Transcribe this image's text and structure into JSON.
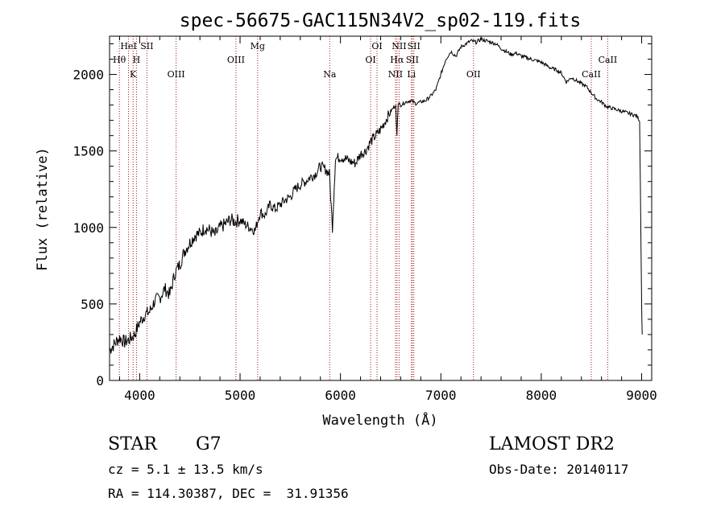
{
  "chart_data": {
    "type": "line",
    "title": "spec-56675-GAC115N34V2_sp02-119.fits",
    "xlabel": "Wavelength (Å)",
    "ylabel": "Flux (relative)",
    "xlim": [
      3700,
      9100
    ],
    "ylim": [
      0,
      2250
    ],
    "xticks": [
      4000,
      5000,
      6000,
      7000,
      8000,
      9000
    ],
    "yticks": [
      0,
      500,
      1000,
      1500,
      2000
    ],
    "grid": false,
    "series": [
      {
        "x": [
          3700,
          3750,
          3800,
          3850,
          3900,
          3950,
          4000,
          4050,
          4100,
          4150,
          4200,
          4250,
          4300,
          4350,
          4400,
          4450,
          4500,
          4550,
          4600,
          4650,
          4700,
          4750,
          4800,
          4850,
          4900,
          4950,
          5000,
          5050,
          5100,
          5150,
          5200,
          5250,
          5300,
          5350,
          5400,
          5450,
          5500,
          5550,
          5600,
          5650,
          5700,
          5750,
          5800,
          5850,
          5890,
          5920,
          5950,
          6000,
          6050,
          6100,
          6150,
          6200,
          6250,
          6300,
          6350,
          6400,
          6450,
          6500,
          6550,
          6562,
          6575,
          6600,
          6650,
          6700,
          6750,
          6800,
          6850,
          6900,
          6950,
          7000,
          7050,
          7100,
          7150,
          7200,
          7250,
          7300,
          7350,
          7400,
          7450,
          7500,
          7550,
          7600,
          7650,
          7700,
          7750,
          7800,
          7850,
          7900,
          7950,
          8000,
          8050,
          8100,
          8150,
          8200,
          8250,
          8300,
          8350,
          8400,
          8450,
          8500,
          8550,
          8600,
          8650,
          8700,
          8750,
          8800,
          8850,
          8900,
          8950,
          8980,
          9000,
          9005
        ],
        "y": [
          200,
          240,
          280,
          250,
          270,
          300,
          380,
          430,
          450,
          520,
          540,
          600,
          560,
          700,
          760,
          850,
          900,
          950,
          960,
          1000,
          980,
          950,
          1000,
          1020,
          1050,
          1040,
          1050,
          1020,
          1000,
          980,
          1100,
          1080,
          1150,
          1120,
          1150,
          1180,
          1200,
          1250,
          1280,
          1300,
          1330,
          1350,
          1400,
          1380,
          1350,
          1000,
          1450,
          1460,
          1450,
          1430,
          1420,
          1480,
          1500,
          1560,
          1600,
          1640,
          1700,
          1760,
          1800,
          1600,
          1810,
          1800,
          1820,
          1830,
          1810,
          1820,
          1830,
          1860,
          1900,
          2000,
          2100,
          2150,
          2120,
          2180,
          2200,
          2220,
          2210,
          2230,
          2220,
          2210,
          2200,
          2170,
          2150,
          2130,
          2140,
          2120,
          2110,
          2100,
          2090,
          2080,
          2060,
          2040,
          2030,
          2010,
          1950,
          1980,
          1960,
          1940,
          1920,
          1880,
          1840,
          1820,
          1790,
          1780,
          1770,
          1760,
          1750,
          1740,
          1730,
          1700,
          500,
          300
        ]
      }
    ],
    "lines": [
      {
        "x": 3798,
        "label": "Hθ",
        "row": 2
      },
      {
        "x": 3889,
        "label": "HeI",
        "row": 1
      },
      {
        "x": 3934,
        "label": "K",
        "row": 3
      },
      {
        "x": 3968,
        "label": "H",
        "row": 2
      },
      {
        "x": 4072,
        "label": "SII",
        "row": 1
      },
      {
        "x": 4363,
        "label": "OIII",
        "row": 3
      },
      {
        "x": 4959,
        "label": "OIII",
        "row": 2
      },
      {
        "x": 5175,
        "label": "Mg",
        "row": 1
      },
      {
        "x": 5893,
        "label": "Na",
        "row": 3
      },
      {
        "x": 6300,
        "label": "OI",
        "row": 2
      },
      {
        "x": 6364,
        "label": "OI",
        "row": 1
      },
      {
        "x": 6548,
        "label": "NII",
        "row": 3
      },
      {
        "x": 6563,
        "label": "Hα",
        "row": 2
      },
      {
        "x": 6584,
        "label": "NII",
        "row": 1
      },
      {
        "x": 6707,
        "label": "Li",
        "row": 3
      },
      {
        "x": 6716,
        "label": "SII",
        "row": 2
      },
      {
        "x": 6731,
        "label": "SII",
        "row": 1
      },
      {
        "x": 7325,
        "label": "OII",
        "row": 3
      },
      {
        "x": 8498,
        "label": "CaII",
        "row": 3
      },
      {
        "x": 8662,
        "label": "CaII",
        "row": 2
      }
    ]
  },
  "info": {
    "class": "STAR",
    "subclass": "G7",
    "survey": "LAMOST DR2",
    "cz": "cz = 5.1 ± 13.5 km/s",
    "obsdate": "Obs-Date: 20140117",
    "coords": "RA = 114.30387, DEC =  31.91356"
  }
}
